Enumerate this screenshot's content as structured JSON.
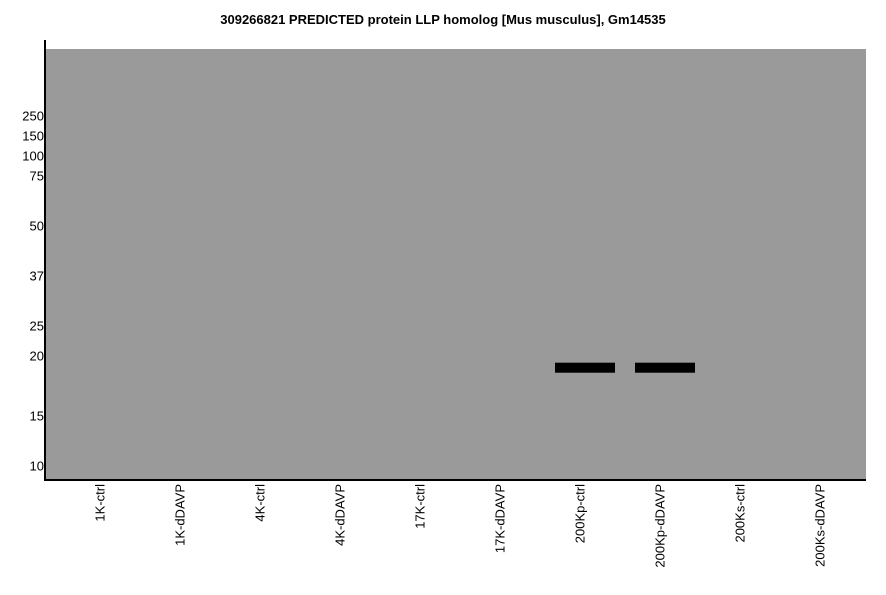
{
  "chart_data": {
    "type": "bar",
    "title": "309266821 PREDICTED  protein LLP homolog [Mus musculus], Gm14535",
    "xlabel": "",
    "ylabel": "",
    "y_scale": "log",
    "y_ticks": [
      250,
      150,
      100,
      75,
      50,
      37,
      25,
      20,
      15,
      10
    ],
    "categories": [
      "1K-ctrl",
      "1K-dDAVP",
      "4K-ctrl",
      "4K-dDAVP",
      "17K-ctrl",
      "17K-dDAVP",
      "200Kp-ctrl",
      "200Kp-dDAVP",
      "200Ks-ctrl",
      "200Ks-dDAVP"
    ],
    "bands": [
      {
        "lane": "200Kp-ctrl",
        "mw": 19
      },
      {
        "lane": "200Kp-dDAVP",
        "mw": 19
      }
    ],
    "colors": {
      "background": "#999a99",
      "band": "#000000"
    },
    "grid": false,
    "legend": "none"
  }
}
